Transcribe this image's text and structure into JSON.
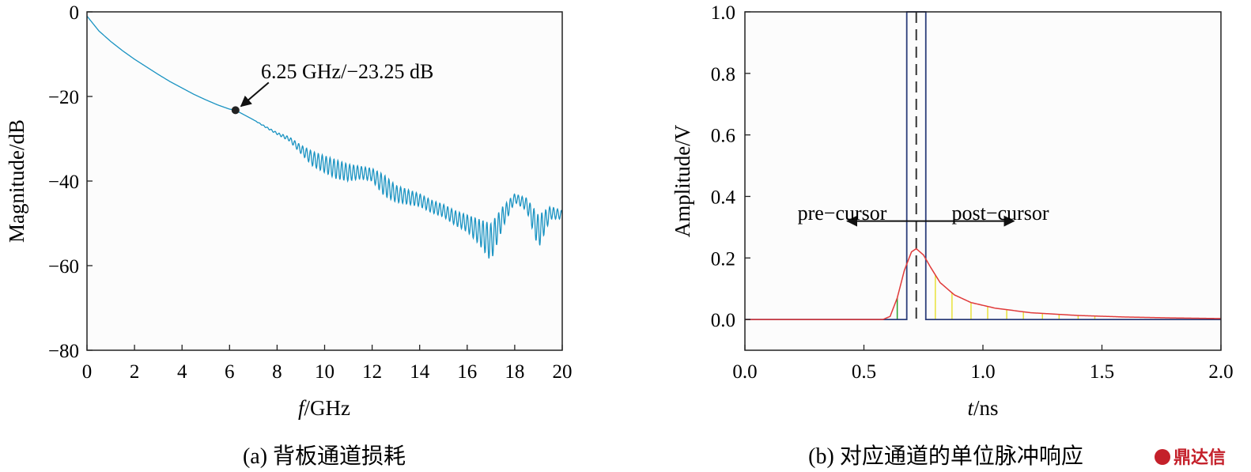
{
  "chart_data": [
    {
      "type": "line",
      "caption": "(a) 背板通道损耗",
      "xlabel_italic": "f",
      "xlabel_unit": "/GHz",
      "ylabel": "Magnitude/dB",
      "xlim": [
        0,
        20
      ],
      "ylim": [
        -80,
        0
      ],
      "xticks": [
        0,
        2,
        4,
        6,
        8,
        10,
        12,
        14,
        16,
        18,
        20
      ],
      "yticks": [
        0,
        -20,
        -40,
        -60,
        -80
      ],
      "xtick_labels": [
        "0",
        "2",
        "4",
        "6",
        "8",
        "10",
        "12",
        "14",
        "16",
        "18",
        "20"
      ],
      "ytick_labels": [
        "0",
        "−20",
        "−40",
        "−60",
        "−80"
      ],
      "series_color": "#1a93c2",
      "series_x": [
        0,
        0.5,
        1,
        1.5,
        2,
        2.5,
        3,
        3.5,
        4,
        4.5,
        5,
        5.5,
        6,
        6.25,
        6.5,
        7,
        7.5,
        8,
        8.5,
        9,
        9.5,
        10,
        10.5,
        11,
        11.5,
        12,
        12.5,
        13,
        13.5,
        14,
        14.5,
        15,
        15.5,
        16,
        16.5,
        17,
        17.5,
        18,
        18.5,
        19,
        19.5,
        20
      ],
      "series_y": [
        -1,
        -4.5,
        -7,
        -9.2,
        -11.2,
        -13,
        -14.8,
        -16.5,
        -18,
        -19.5,
        -20.8,
        -22,
        -23,
        -23.25,
        -24,
        -25.5,
        -27,
        -28.5,
        -29.5,
        -31.5,
        -33,
        -34,
        -35,
        -36,
        -36.5,
        -37,
        -38.5,
        -41,
        -42,
        -43,
        -44.5,
        -45.5,
        -47,
        -48,
        -49,
        -50,
        -46,
        -43,
        -44,
        -48,
        -46,
        -47
      ],
      "ripple_amp": [
        0,
        0,
        0,
        0,
        0,
        0,
        0,
        0,
        0,
        0,
        0,
        0,
        0,
        0,
        0,
        0,
        0.3,
        0.5,
        1,
        2,
        3.5,
        4,
        4.5,
        4,
        3,
        3,
        5,
        4,
        3.5,
        3,
        3,
        3,
        3.5,
        4,
        6,
        9,
        5,
        2,
        3,
        8,
        3,
        2
      ],
      "marker": {
        "x": 6.25,
        "y": -23.25
      },
      "annotation": "6.25 GHz/−23.25 dB"
    },
    {
      "type": "line",
      "caption": "(b) 对应通道的单位脉冲响应",
      "xlabel_italic": "t",
      "xlabel_unit": "/ns",
      "ylabel": "Amplitude/V",
      "xlim": [
        0,
        2
      ],
      "ylim": [
        -0.1,
        1.0
      ],
      "xticks": [
        0,
        0.5,
        1.0,
        1.5,
        2.0
      ],
      "yticks": [
        0,
        0.2,
        0.4,
        0.6,
        0.8,
        1.0
      ],
      "xtick_labels": [
        "0.0",
        "0.5",
        "1.0",
        "1.5",
        "2.0"
      ],
      "ytick_labels": [
        "0.0",
        "0.2",
        "0.4",
        "0.6",
        "0.8",
        "1.0"
      ],
      "pulse": {
        "start": 0.68,
        "end": 0.76,
        "height": 1.0,
        "color": "#2c3e7a"
      },
      "cursor_line": {
        "x": 0.72,
        "color": "#333333"
      },
      "response_color": "#e03a3a",
      "response_x": [
        0,
        0.58,
        0.61,
        0.64,
        0.67,
        0.7,
        0.72,
        0.75,
        0.78,
        0.82,
        0.88,
        0.95,
        1.05,
        1.2,
        1.4,
        1.6,
        1.8,
        2.0
      ],
      "response_y": [
        0,
        0,
        0.01,
        0.07,
        0.16,
        0.22,
        0.23,
        0.21,
        0.17,
        0.12,
        0.08,
        0.055,
        0.037,
        0.022,
        0.013,
        0.008,
        0.005,
        0.003
      ],
      "pre_cursor_samples": [
        0.64
      ],
      "post_cursor_samples": [
        0.8,
        0.87,
        0.95,
        1.02,
        1.1,
        1.17,
        1.25,
        1.32,
        1.4,
        1.47
      ],
      "pre_label": "pre−cursor",
      "post_label": "post−cursor",
      "arrow_y": 0.32
    }
  ],
  "logo": {
    "text": "鼎达信",
    "color": "#c4202a"
  }
}
